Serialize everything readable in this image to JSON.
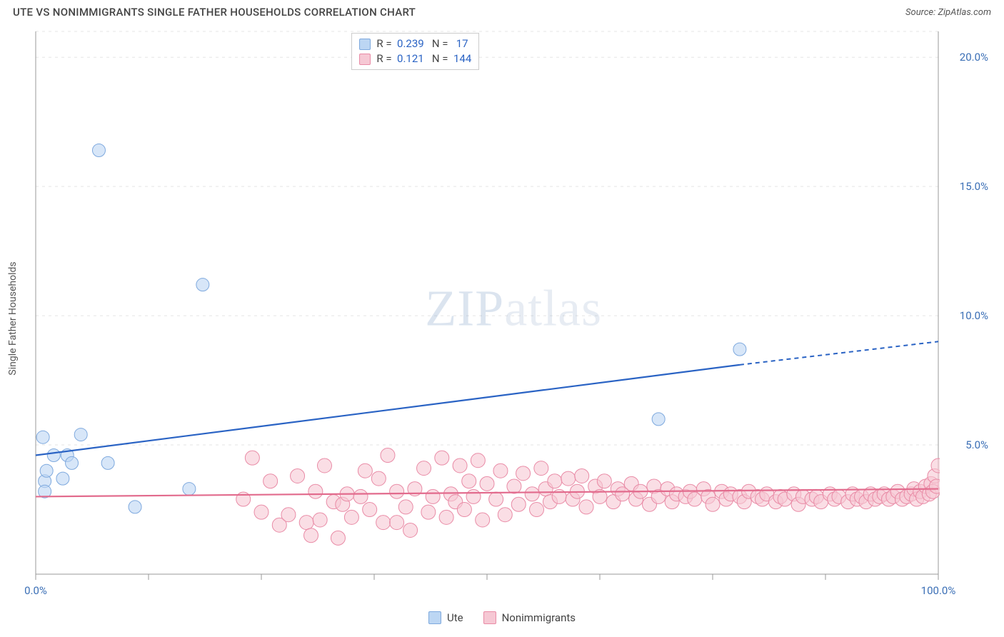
{
  "title": "UTE VS NONIMMIGRANTS SINGLE FATHER HOUSEHOLDS CORRELATION CHART",
  "source_label": "Source:",
  "source_value": "ZipAtlas.com",
  "y_axis_label": "Single Father Households",
  "watermark": {
    "zip": "ZIP",
    "atlas": "atlas"
  },
  "chart": {
    "type": "scatter",
    "xlim": [
      0,
      100
    ],
    "ylim": [
      0,
      21
    ],
    "x_ticks": [
      0,
      12.5,
      25,
      37.5,
      50,
      62.5,
      75,
      87.5,
      100
    ],
    "x_tick_labels": {
      "0": "0.0%",
      "100": "100.0%"
    },
    "y_ticks": [
      5,
      10,
      15,
      20
    ],
    "y_tick_labels": [
      "5.0%",
      "10.0%",
      "15.0%",
      "20.0%"
    ],
    "grid_color": "#e5e5e5",
    "grid_dash": "4,5",
    "axis_line_color": "#999",
    "background": "#ffffff",
    "tick_label_color": "#3b6fb6",
    "axis_label_color": "#555555"
  },
  "series": [
    {
      "name": "Ute",
      "fill": "#bcd6f3",
      "stroke": "#7ea9de",
      "line_color": "#2a63c4",
      "marker_r": 9,
      "R": "0.239",
      "N": "17",
      "trend": {
        "x1": 0,
        "y1": 4.6,
        "x2": 78,
        "y2": 8.1,
        "x2_dash": 100,
        "y2_dash": 9.0
      },
      "points": [
        [
          1.0,
          3.6
        ],
        [
          1.2,
          4.0
        ],
        [
          1.0,
          3.2
        ],
        [
          0.8,
          5.3
        ],
        [
          2.0,
          4.6
        ],
        [
          3.0,
          3.7
        ],
        [
          3.5,
          4.6
        ],
        [
          4.0,
          4.3
        ],
        [
          5.0,
          5.4
        ],
        [
          8.0,
          4.3
        ],
        [
          11.0,
          2.6
        ],
        [
          7.0,
          16.4
        ],
        [
          17.0,
          3.3
        ],
        [
          18.5,
          11.2
        ],
        [
          69.0,
          6.0
        ],
        [
          78.0,
          8.7
        ]
      ]
    },
    {
      "name": "Nonimmigrants",
      "fill": "#f6c8d4",
      "stroke": "#e98ba6",
      "line_color": "#e26b8d",
      "marker_r": 10,
      "R": "0.121",
      "N": "144",
      "trend": {
        "x1": 0,
        "y1": 3.0,
        "x2": 100,
        "y2": 3.3
      },
      "points": [
        [
          23,
          2.9
        ],
        [
          24,
          4.5
        ],
        [
          25,
          2.4
        ],
        [
          26,
          3.6
        ],
        [
          27,
          1.9
        ],
        [
          28,
          2.3
        ],
        [
          29,
          3.8
        ],
        [
          30,
          2.0
        ],
        [
          30.5,
          1.5
        ],
        [
          31,
          3.2
        ],
        [
          31.5,
          2.1
        ],
        [
          32,
          4.2
        ],
        [
          33,
          2.8
        ],
        [
          33.5,
          1.4
        ],
        [
          34,
          2.7
        ],
        [
          34.5,
          3.1
        ],
        [
          35,
          2.2
        ],
        [
          36,
          3.0
        ],
        [
          36.5,
          4.0
        ],
        [
          37,
          2.5
        ],
        [
          38,
          3.7
        ],
        [
          38.5,
          2.0
        ],
        [
          39,
          4.6
        ],
        [
          40,
          3.2
        ],
        [
          40,
          2.0
        ],
        [
          41,
          2.6
        ],
        [
          41.5,
          1.7
        ],
        [
          42,
          3.3
        ],
        [
          43,
          4.1
        ],
        [
          43.5,
          2.4
        ],
        [
          44,
          3.0
        ],
        [
          45,
          4.5
        ],
        [
          45.5,
          2.2
        ],
        [
          46,
          3.1
        ],
        [
          46.5,
          2.8
        ],
        [
          47,
          4.2
        ],
        [
          47.5,
          2.5
        ],
        [
          48,
          3.6
        ],
        [
          48.5,
          3.0
        ],
        [
          49,
          4.4
        ],
        [
          49.5,
          2.1
        ],
        [
          50,
          3.5
        ],
        [
          51,
          2.9
        ],
        [
          51.5,
          4.0
        ],
        [
          52,
          2.3
        ],
        [
          53,
          3.4
        ],
        [
          53.5,
          2.7
        ],
        [
          54,
          3.9
        ],
        [
          55,
          3.1
        ],
        [
          55.5,
          2.5
        ],
        [
          56,
          4.1
        ],
        [
          56.5,
          3.3
        ],
        [
          57,
          2.8
        ],
        [
          57.5,
          3.6
        ],
        [
          58,
          3.0
        ],
        [
          59,
          3.7
        ],
        [
          59.5,
          2.9
        ],
        [
          60,
          3.2
        ],
        [
          60.5,
          3.8
        ],
        [
          61,
          2.6
        ],
        [
          62,
          3.4
        ],
        [
          62.5,
          3.0
        ],
        [
          63,
          3.6
        ],
        [
          64,
          2.8
        ],
        [
          64.5,
          3.3
        ],
        [
          65,
          3.1
        ],
        [
          66,
          3.5
        ],
        [
          66.5,
          2.9
        ],
        [
          67,
          3.2
        ],
        [
          68,
          2.7
        ],
        [
          68.5,
          3.4
        ],
        [
          69,
          3.0
        ],
        [
          70,
          3.3
        ],
        [
          70.5,
          2.8
        ],
        [
          71,
          3.1
        ],
        [
          72,
          3.0
        ],
        [
          72.5,
          3.2
        ],
        [
          73,
          2.9
        ],
        [
          74,
          3.3
        ],
        [
          74.5,
          3.0
        ],
        [
          75,
          2.7
        ],
        [
          76,
          3.2
        ],
        [
          76.5,
          2.9
        ],
        [
          77,
          3.1
        ],
        [
          78,
          3.0
        ],
        [
          78.5,
          2.8
        ],
        [
          79,
          3.2
        ],
        [
          80,
          3.0
        ],
        [
          80.5,
          2.9
        ],
        [
          81,
          3.1
        ],
        [
          82,
          2.8
        ],
        [
          82.5,
          3.0
        ],
        [
          83,
          2.9
        ],
        [
          84,
          3.1
        ],
        [
          84.5,
          2.7
        ],
        [
          85,
          3.0
        ],
        [
          86,
          2.9
        ],
        [
          86.5,
          3.0
        ],
        [
          87,
          2.8
        ],
        [
          88,
          3.1
        ],
        [
          88.5,
          2.9
        ],
        [
          89,
          3.0
        ],
        [
          90,
          2.8
        ],
        [
          90.5,
          3.1
        ],
        [
          91,
          2.9
        ],
        [
          91.5,
          3.0
        ],
        [
          92,
          2.8
        ],
        [
          92.5,
          3.1
        ],
        [
          93,
          2.9
        ],
        [
          93.5,
          3.0
        ],
        [
          94,
          3.1
        ],
        [
          94.5,
          2.9
        ],
        [
          95,
          3.0
        ],
        [
          95.5,
          3.2
        ],
        [
          96,
          2.9
        ],
        [
          96.5,
          3.0
        ],
        [
          97,
          3.1
        ],
        [
          97.3,
          3.3
        ],
        [
          97.6,
          2.9
        ],
        [
          98,
          3.2
        ],
        [
          98.3,
          3.0
        ],
        [
          98.6,
          3.4
        ],
        [
          99,
          3.1
        ],
        [
          99.2,
          3.5
        ],
        [
          99.4,
          3.2
        ],
        [
          99.6,
          3.8
        ],
        [
          99.8,
          3.4
        ],
        [
          100,
          4.2
        ]
      ]
    }
  ],
  "stats_legend": {
    "R_label": "R =",
    "N_label": "N ="
  },
  "bottom_legend_labels": [
    "Ute",
    "Nonimmigrants"
  ]
}
